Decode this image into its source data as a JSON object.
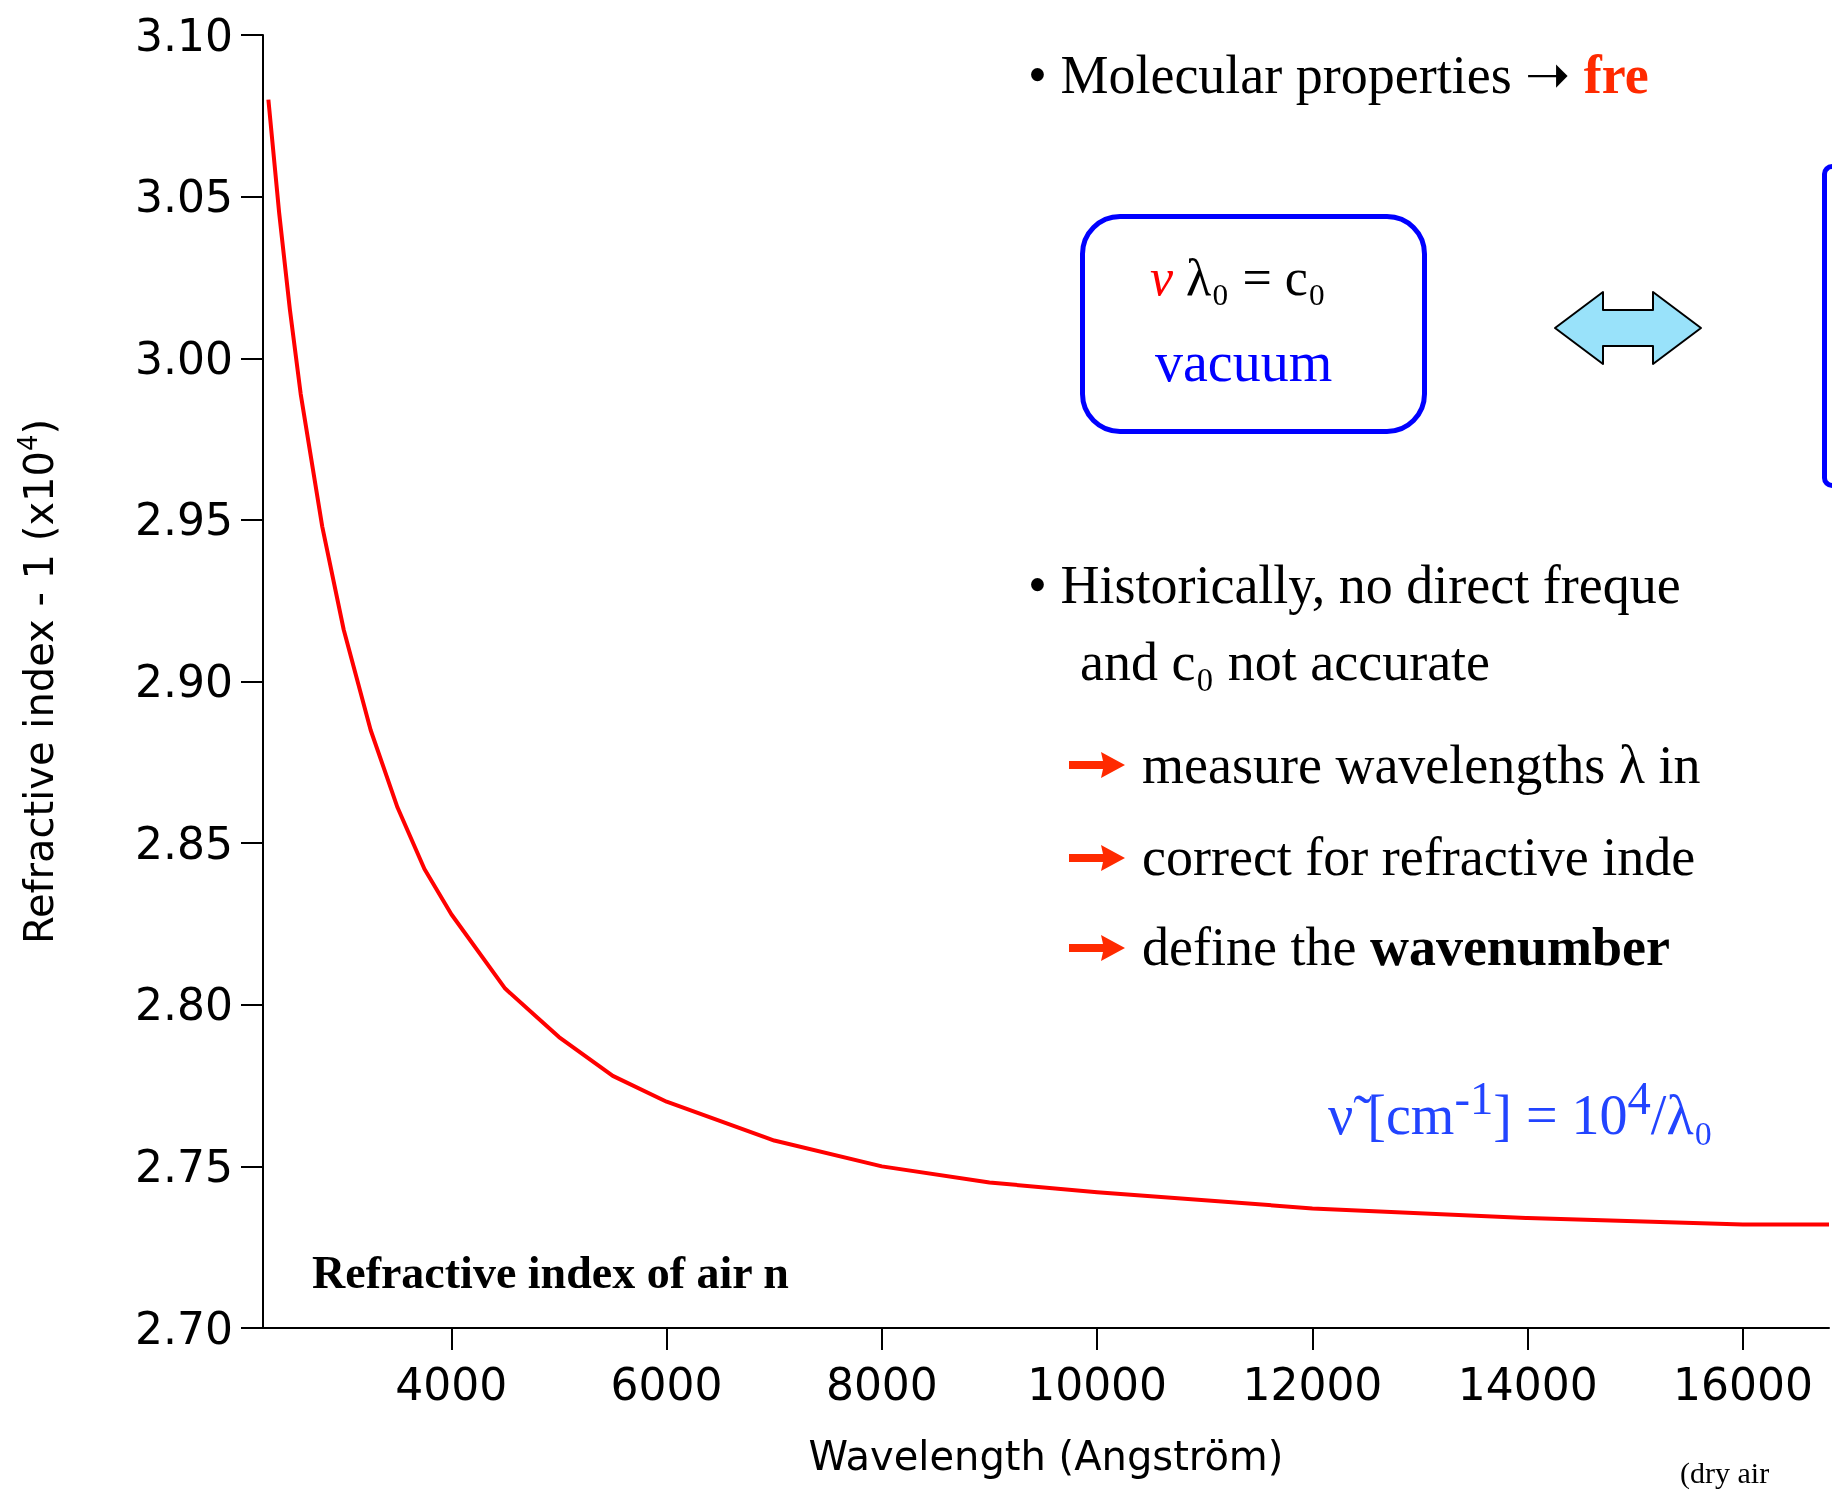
{
  "chart_data": {
    "type": "line",
    "title": "Refractive index of air n",
    "xlabel": "Wavelength (Angström)",
    "ylabel": "Refractive index - 1 (x10$^{4}$)",
    "x": [
      2300,
      2400,
      2500,
      2600,
      2800,
      3000,
      3250,
      3500,
      3750,
      4000,
      4500,
      5000,
      5500,
      6000,
      7000,
      8000,
      9000,
      10000,
      12000,
      14000,
      16000,
      16800
    ],
    "series": [
      {
        "color": "#ff0000",
        "values": [
          3.08,
          3.045,
          3.015,
          2.989,
          2.948,
          2.916,
          2.885,
          2.861,
          2.842,
          2.828,
          2.805,
          2.79,
          2.778,
          2.77,
          2.758,
          2.75,
          2.745,
          2.742,
          2.737,
          2.734,
          2.732,
          2.732
        ]
      }
    ],
    "xlim": [
      2250,
      16800
    ],
    "xticks": [
      4000,
      6000,
      8000,
      10000,
      12000,
      14000,
      16000
    ],
    "ylim": [
      2.7,
      3.1
    ],
    "yticks": [
      {
        "value": 2.7,
        "label": "2.70"
      },
      {
        "value": 2.75,
        "label": "2.75"
      },
      {
        "value": 2.8,
        "label": "2.80"
      },
      {
        "value": 2.85,
        "label": "2.85"
      },
      {
        "value": 2.9,
        "label": "2.90"
      },
      {
        "value": 2.95,
        "label": "2.95"
      },
      {
        "value": 3.0,
        "label": "3.00"
      },
      {
        "value": 3.05,
        "label": "3.05"
      },
      {
        "value": 3.1,
        "label": "3.10"
      }
    ],
    "grid": false,
    "marker": "none",
    "line_style": "solid",
    "annotations": [
      "• Molecular properties ➝ fre",
      "ν λ₀ = c₀",
      "vacuum",
      "• Historically, no direct freque",
      "and c₀ not accurate",
      "measure wavelengths λ in",
      "correct for refractive inde",
      "define the wavenumber",
      "ν̃ [cm$^{-1}$] = 10$^{4}$/λ₀",
      "(dry air"
    ]
  }
}
